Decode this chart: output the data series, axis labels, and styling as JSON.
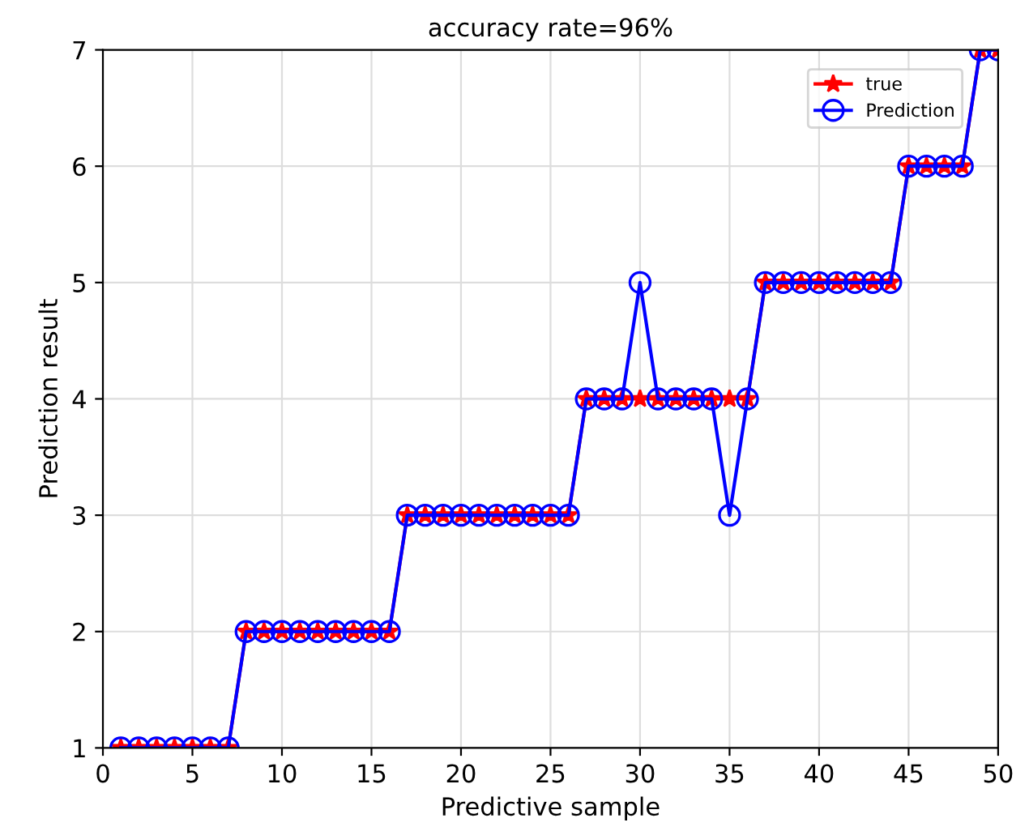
{
  "chart_data": {
    "type": "line",
    "title": "accuracy rate=96%",
    "xlabel": "Predictive sample",
    "ylabel": "Prediction result",
    "x": [
      1,
      2,
      3,
      4,
      5,
      6,
      7,
      8,
      9,
      10,
      11,
      12,
      13,
      14,
      15,
      16,
      17,
      18,
      19,
      20,
      21,
      22,
      23,
      24,
      25,
      26,
      27,
      28,
      29,
      30,
      31,
      32,
      33,
      34,
      35,
      36,
      37,
      38,
      39,
      40,
      41,
      42,
      43,
      44,
      45,
      46,
      47,
      48,
      49,
      50
    ],
    "series": [
      {
        "name": "true",
        "color": "#ff0000",
        "marker": "star",
        "values": [
          1,
          1,
          1,
          1,
          1,
          1,
          1,
          2,
          2,
          2,
          2,
          2,
          2,
          2,
          2,
          2,
          3,
          3,
          3,
          3,
          3,
          3,
          3,
          3,
          3,
          3,
          4,
          4,
          4,
          4,
          4,
          4,
          4,
          4,
          4,
          4,
          5,
          5,
          5,
          5,
          5,
          5,
          5,
          5,
          6,
          6,
          6,
          6,
          7,
          7
        ]
      },
      {
        "name": "Prediction",
        "color": "#0000ff",
        "marker": "circle",
        "values": [
          1,
          1,
          1,
          1,
          1,
          1,
          1,
          2,
          2,
          2,
          2,
          2,
          2,
          2,
          2,
          2,
          3,
          3,
          3,
          3,
          3,
          3,
          3,
          3,
          3,
          3,
          4,
          4,
          4,
          5,
          4,
          4,
          4,
          4,
          3,
          4,
          5,
          5,
          5,
          5,
          5,
          5,
          5,
          5,
          6,
          6,
          6,
          6,
          7,
          7
        ]
      }
    ],
    "xlim": [
      0,
      50
    ],
    "xticks": [
      0,
      5,
      10,
      15,
      20,
      25,
      30,
      35,
      40,
      45,
      50
    ],
    "ylim": [
      1,
      7
    ],
    "yticks": [
      1,
      2,
      3,
      4,
      5,
      6,
      7
    ],
    "grid": true,
    "legend": "top right",
    "line_style": "solid"
  }
}
